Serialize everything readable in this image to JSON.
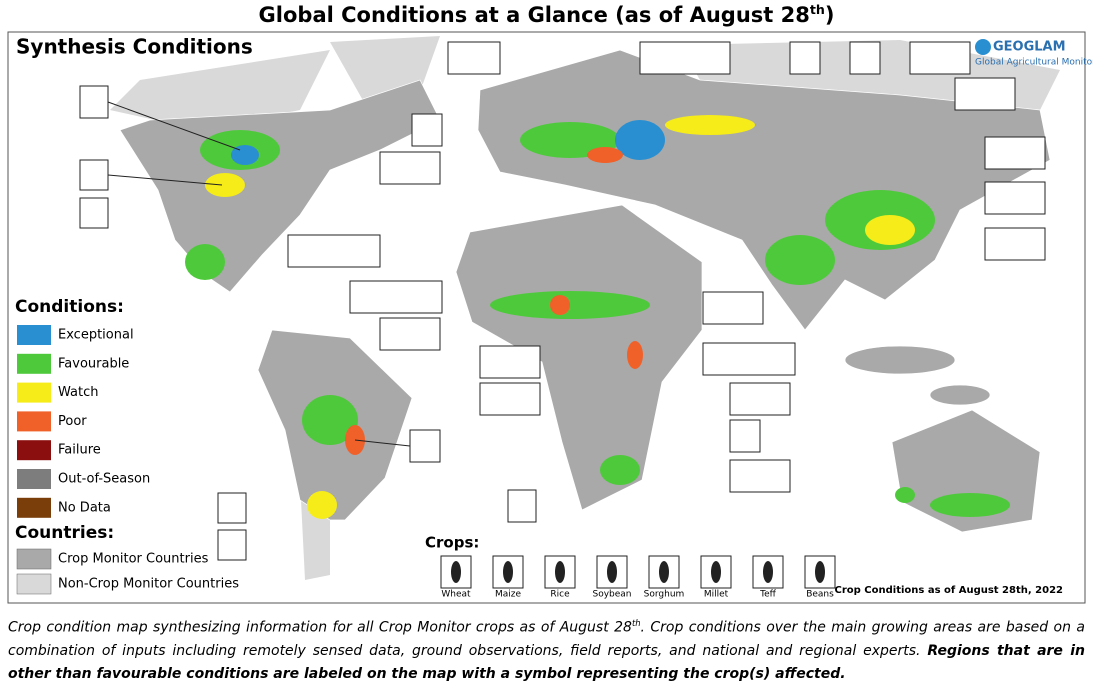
{
  "title": {
    "main": "Global Conditions at a Glance (as of August 28",
    "sup": "th",
    "end": ")"
  },
  "map": {
    "heading": "Synthesis Conditions",
    "logo": "GEOGLAM",
    "logo_sub": "Global Agricultural Monitoring",
    "footnote": "Crop Conditions as of August 28th, 2022"
  },
  "conditions": {
    "title": "Conditions:",
    "items": [
      {
        "label": "Exceptional",
        "color": "#2a8fd0"
      },
      {
        "label": "Favourable",
        "color": "#4fc93c"
      },
      {
        "label": "Watch",
        "color": "#f5ec1a"
      },
      {
        "label": "Poor",
        "color": "#f0612a"
      },
      {
        "label": "Failure",
        "color": "#8b0f0f"
      },
      {
        "label": "Out-of-Season",
        "color": "#7d7d7d"
      },
      {
        "label": "No Data",
        "color": "#7a3e0b"
      }
    ]
  },
  "countries": {
    "title": "Countries:",
    "items": [
      {
        "label": "Crop Monitor Countries",
        "color": "#a9a9a9"
      },
      {
        "label": "Non-Crop Monitor Countries",
        "color": "#d9d9d9"
      }
    ]
  },
  "crops": {
    "title": "Crops:",
    "items": [
      "Wheat",
      "Maize",
      "Rice",
      "Soybean",
      "Sorghum",
      "Millet",
      "Teff",
      "Beans"
    ]
  },
  "caption": {
    "p1": "Crop condition map synthesizing information for all Crop Monitor crops as of August 28",
    "sup": "th",
    "p2": ". Crop conditions over the main growing areas are based on a combination of inputs including remotely sensed data, ground observations, field reports, and national and regional experts. ",
    "bold": "Regions that are in other than favourable conditions are labeled on the map with a symbol representing the crop(s) affected."
  }
}
